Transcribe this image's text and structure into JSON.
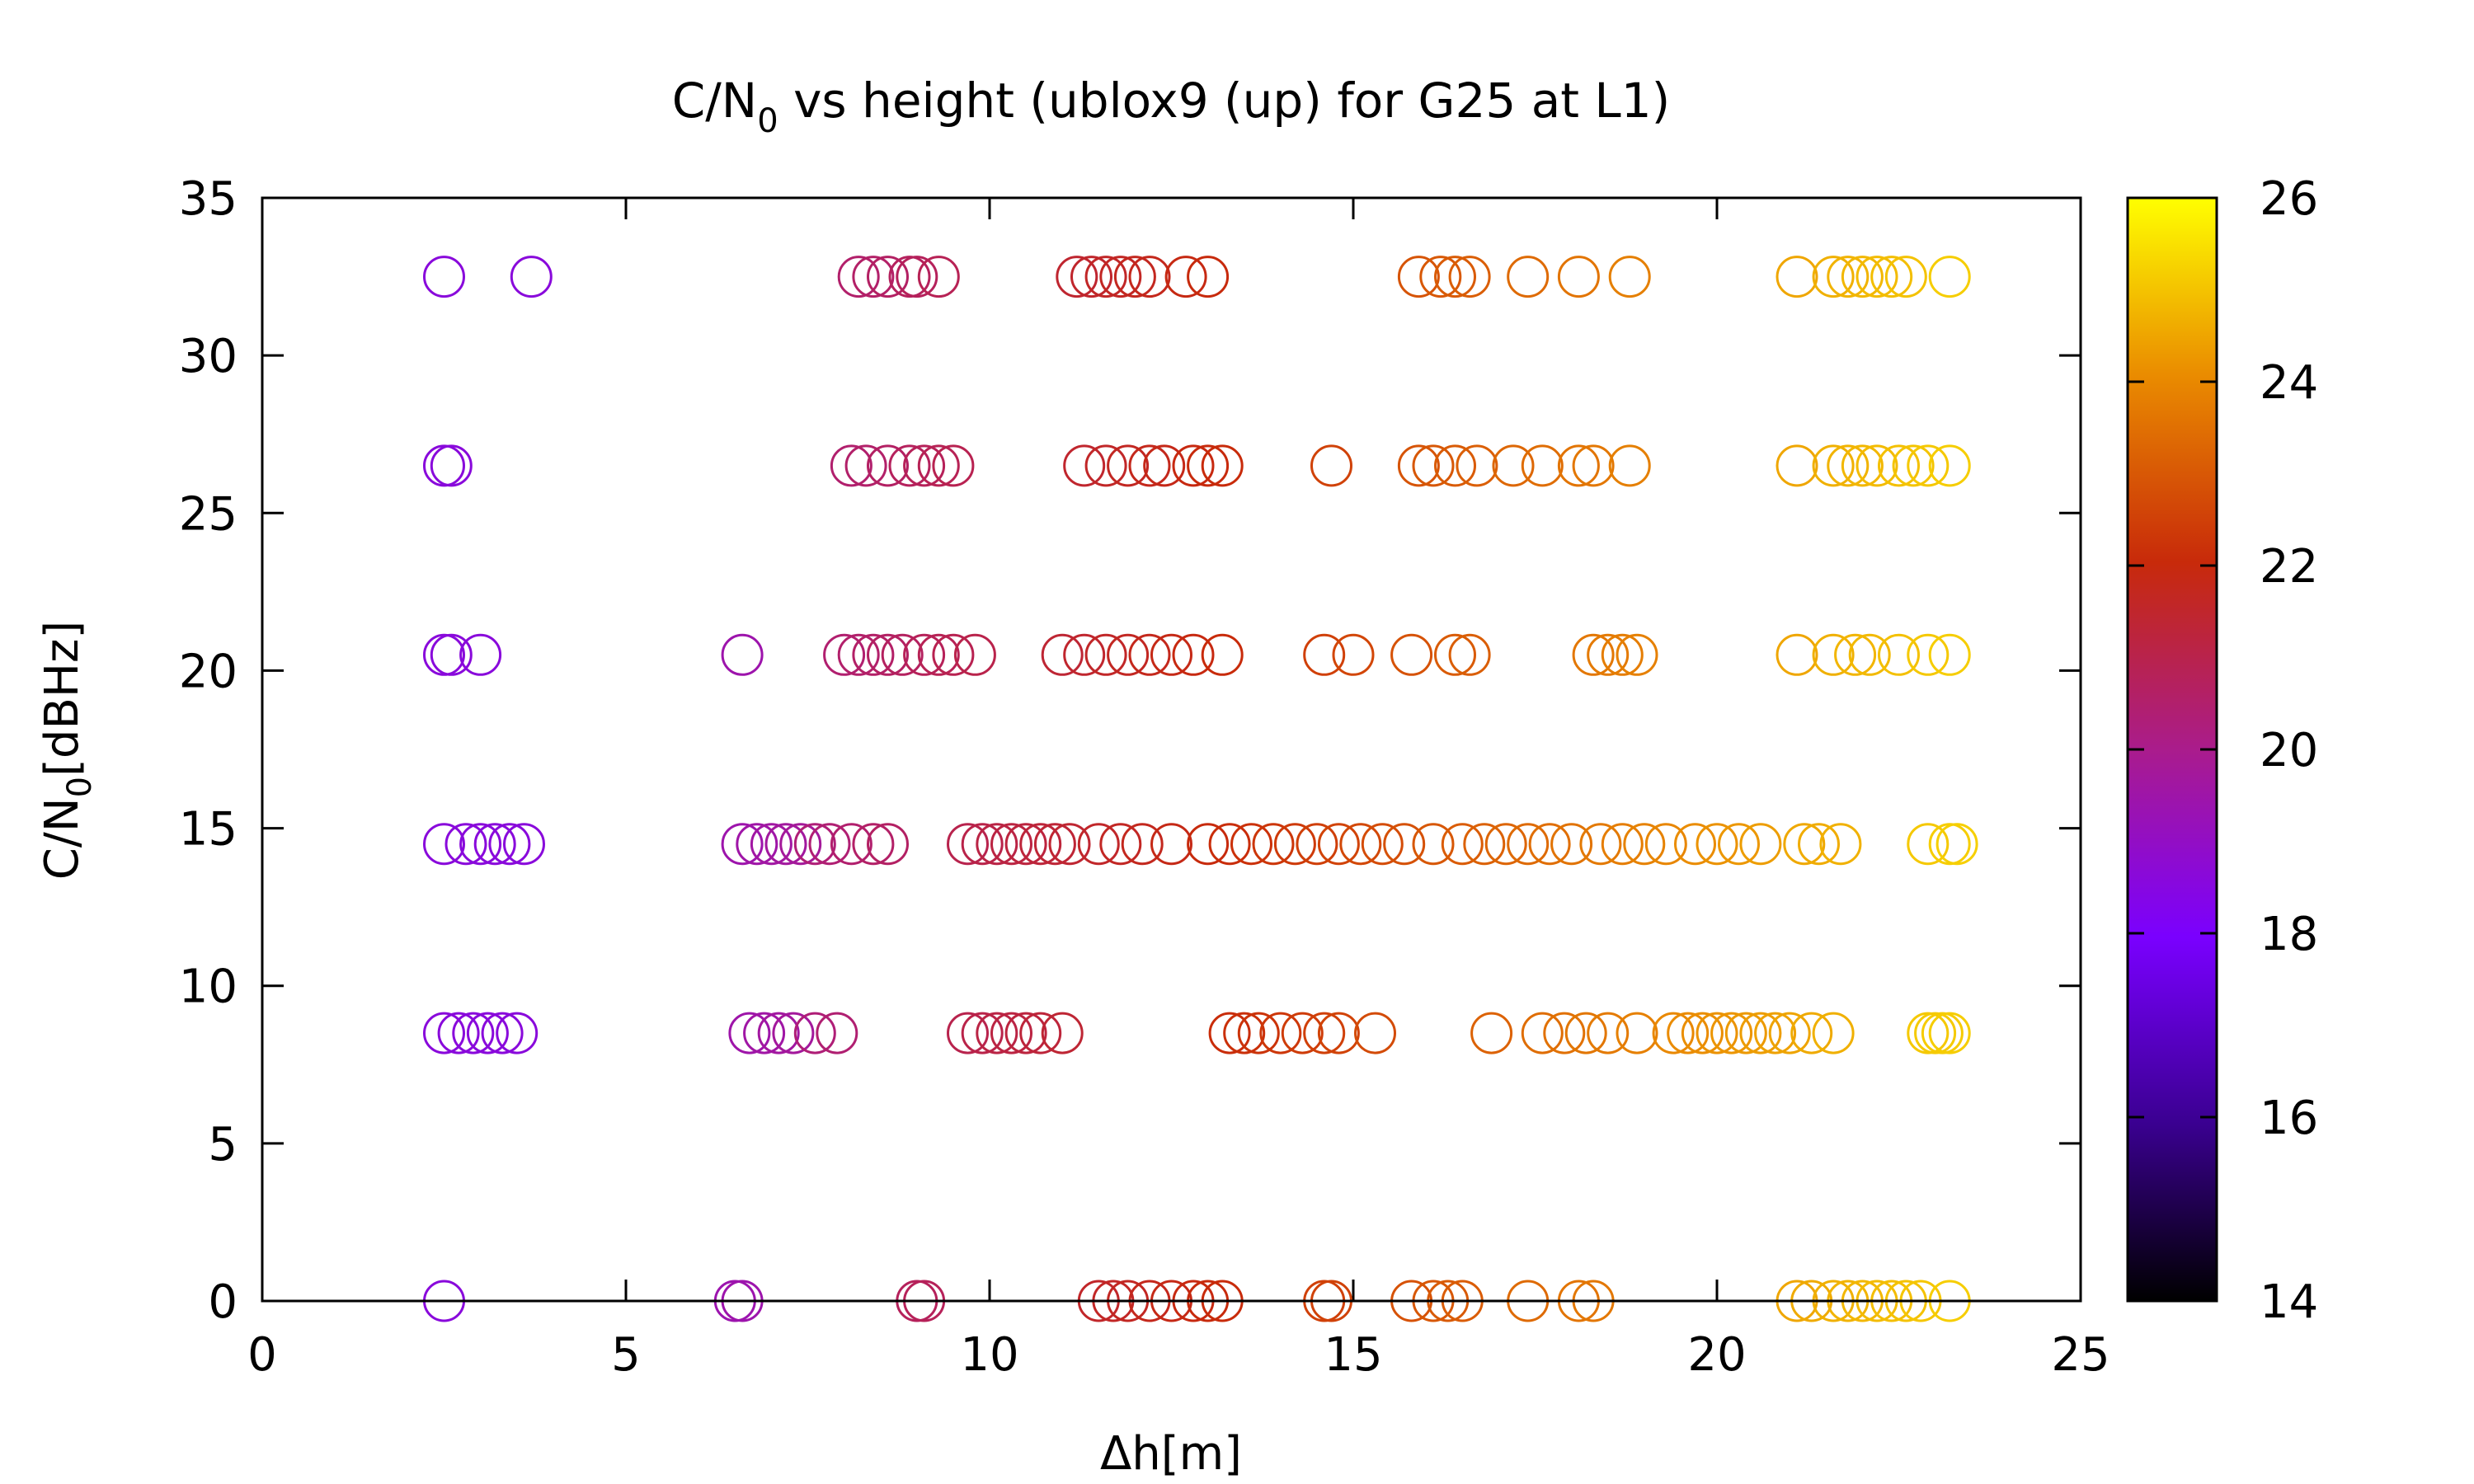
{
  "chart_data": {
    "type": "scatter",
    "title": "C/N",
    "title_sub": "0",
    "title_rest": " vs height (ublox9 (up) for G25 at L1)",
    "xlabel": "Δh[m]",
    "ylabel_main": "C/N",
    "ylabel_sub": "0",
    "ylabel_rest": "[dBHz]",
    "xlim": [
      0,
      25
    ],
    "ylim": [
      0,
      35
    ],
    "xticks": [
      "0",
      "5",
      "10",
      "15",
      "20",
      "25"
    ],
    "yticks": [
      "0",
      "5",
      "10",
      "15",
      "20",
      "25",
      "30",
      "35"
    ],
    "colorbar": {
      "min": 14,
      "max": 26,
      "ticks": [
        "14",
        "16",
        "18",
        "20",
        "22",
        "24",
        "26"
      ]
    },
    "marker": "open-circle",
    "grid": false,
    "rows": [
      {
        "y": 32.5,
        "x": [
          2.5,
          3.7,
          8.2,
          8.4,
          8.6,
          8.9,
          9.0,
          9.3,
          11.2,
          11.4,
          11.6,
          11.8,
          12.0,
          12.2,
          12.7,
          13.0,
          15.9,
          16.2,
          16.4,
          16.6,
          17.4,
          18.1,
          18.8,
          21.1,
          21.6,
          21.8,
          22.0,
          22.2,
          22.4,
          22.6,
          23.2
        ]
      },
      {
        "y": 26.5,
        "x": [
          2.5,
          2.6,
          8.1,
          8.3,
          8.6,
          8.9,
          9.1,
          9.3,
          9.5,
          11.3,
          11.6,
          11.9,
          12.2,
          12.4,
          12.8,
          13.0,
          13.2,
          14.7,
          15.9,
          16.1,
          16.4,
          16.7,
          17.2,
          17.6,
          18.1,
          18.3,
          18.8,
          21.1,
          21.6,
          21.8,
          22.0,
          22.2,
          22.5,
          22.7,
          22.9,
          23.2
        ]
      },
      {
        "y": 20.5,
        "x": [
          2.5,
          2.6,
          3.0,
          6.6,
          8.0,
          8.2,
          8.4,
          8.6,
          8.8,
          9.1,
          9.3,
          9.5,
          9.8,
          11.0,
          11.3,
          11.6,
          11.9,
          12.2,
          12.5,
          12.8,
          13.2,
          14.6,
          15.0,
          15.8,
          16.4,
          16.6,
          18.3,
          18.5,
          18.7,
          18.9,
          21.1,
          21.6,
          21.9,
          22.1,
          22.5,
          22.9,
          23.2
        ]
      },
      {
        "y": 14.5,
        "x": [
          2.5,
          2.8,
          3.0,
          3.2,
          3.4,
          3.6,
          6.6,
          6.8,
          7.0,
          7.2,
          7.4,
          7.6,
          7.8,
          8.1,
          8.4,
          8.6,
          9.7,
          9.9,
          10.1,
          10.3,
          10.5,
          10.7,
          10.9,
          11.1,
          11.5,
          11.8,
          12.1,
          12.5,
          13.0,
          13.3,
          13.6,
          13.9,
          14.2,
          14.5,
          14.8,
          15.1,
          15.4,
          15.7,
          16.1,
          16.5,
          16.8,
          17.1,
          17.4,
          17.7,
          18.0,
          18.4,
          18.7,
          19.0,
          19.3,
          19.7,
          20.0,
          20.3,
          20.6,
          21.2,
          21.4,
          21.7,
          22.9,
          23.2,
          23.3
        ]
      },
      {
        "y": 8.5,
        "x": [
          2.5,
          2.7,
          2.9,
          3.1,
          3.3,
          3.5,
          6.7,
          6.9,
          7.1,
          7.3,
          7.6,
          7.9,
          9.7,
          9.9,
          10.1,
          10.3,
          10.5,
          10.7,
          11.0,
          13.3,
          13.5,
          13.7,
          14.0,
          14.3,
          14.6,
          14.8,
          15.3,
          16.9,
          17.6,
          17.9,
          18.2,
          18.5,
          18.9,
          19.4,
          19.6,
          19.8,
          20.0,
          20.2,
          20.4,
          20.6,
          20.8,
          21.0,
          21.3,
          21.6,
          22.9,
          23.0,
          23.1,
          23.2
        ]
      },
      {
        "y": 0.0,
        "x": [
          2.5,
          6.5,
          6.6,
          9.0,
          9.1,
          11.5,
          11.7,
          11.9,
          12.2,
          12.5,
          12.8,
          13.0,
          13.2,
          14.6,
          14.7,
          15.8,
          16.1,
          16.3,
          16.5,
          17.4,
          18.1,
          18.3,
          21.1,
          21.3,
          21.6,
          21.8,
          22.0,
          22.2,
          22.4,
          22.6,
          22.8,
          23.2
        ]
      }
    ]
  }
}
